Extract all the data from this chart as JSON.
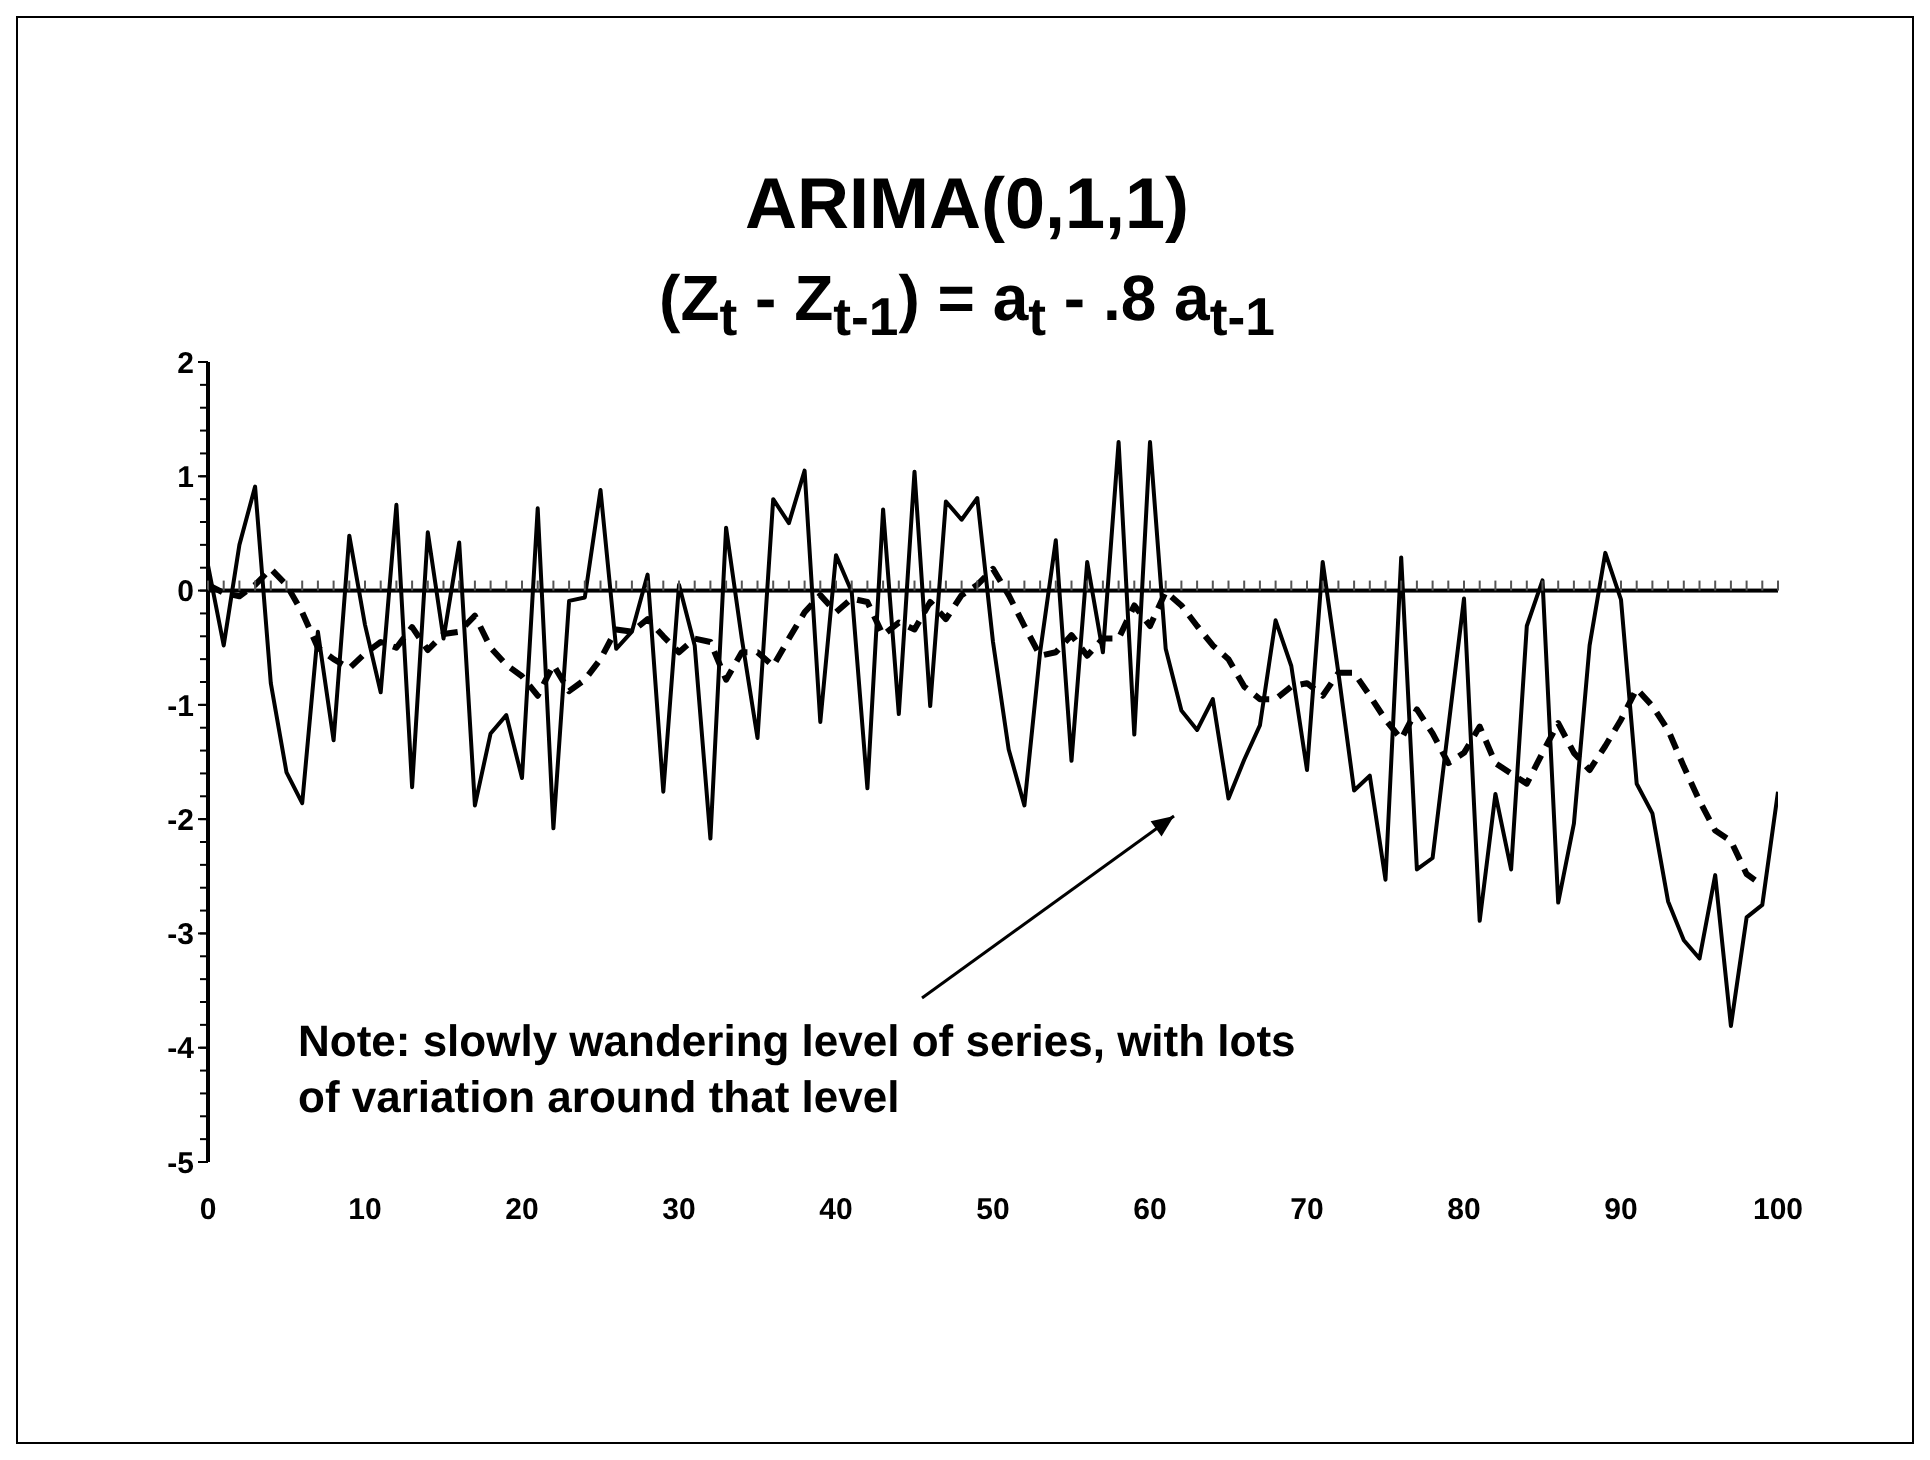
{
  "chart_data": {
    "type": "line",
    "title": "ARIMA(0,1,1)",
    "subtitle": "(Z$_{t}$ - Z$_{t-1}$) = a$_{t}$ - .8 a$_{t-1}$",
    "x": [
      0,
      1,
      2,
      3,
      4,
      5,
      6,
      7,
      8,
      9,
      10,
      11,
      12,
      13,
      14,
      15,
      16,
      17,
      18,
      19,
      20,
      21,
      22,
      23,
      24,
      25,
      26,
      27,
      28,
      29,
      30,
      31,
      32,
      33,
      34,
      35,
      36,
      37,
      38,
      39,
      40,
      41,
      42,
      43,
      44,
      45,
      46,
      47,
      48,
      49,
      50,
      51,
      52,
      53,
      54,
      55,
      56,
      57,
      58,
      59,
      60,
      61,
      62,
      63,
      64,
      65,
      66,
      67,
      68,
      69,
      70,
      71,
      72,
      73,
      74,
      75,
      76,
      77,
      78,
      79,
      80,
      81,
      82,
      83,
      84,
      85,
      86,
      87,
      88,
      89,
      90,
      91,
      92,
      93,
      94,
      95,
      96,
      97,
      98,
      99,
      100
    ],
    "series": [
      {
        "color": "#000000",
        "line_style": "solid",
        "values": [
          0.22,
          -0.48,
          0.4,
          0.91,
          -0.81,
          -1.59,
          -1.86,
          -0.36,
          -1.31,
          0.48,
          -0.3,
          -0.89,
          0.75,
          -1.72,
          0.51,
          -0.42,
          0.42,
          -1.88,
          -1.25,
          -1.09,
          -1.64,
          0.72,
          -2.08,
          -0.09,
          -0.06,
          0.88,
          -0.51,
          -0.36,
          0.14,
          -1.76,
          0.05,
          -0.48,
          -2.17,
          0.55,
          -0.42,
          -1.29,
          0.8,
          0.59,
          1.05,
          -1.15,
          0.31,
          -0.01,
          -1.73,
          0.71,
          -1.08,
          1.04,
          -1.01,
          0.78,
          0.62,
          0.81,
          -0.45,
          -1.39,
          -1.88,
          -0.54,
          0.44,
          -1.49,
          0.25,
          -0.54,
          1.3,
          -1.26,
          1.3,
          -0.51,
          -1.05,
          -1.22,
          -0.95,
          -1.82,
          -1.48,
          -1.18,
          -0.26,
          -0.66,
          -1.57,
          0.25,
          -0.72,
          -1.75,
          -1.62,
          -2.53,
          0.29,
          -2.44,
          -2.34,
          -1.2,
          -0.07,
          -2.89,
          -1.78,
          -2.44,
          -0.31,
          0.09,
          -2.73,
          -2.04,
          -0.48,
          0.33,
          -0.08,
          -1.69,
          -1.95,
          -2.72,
          -3.06,
          -3.22,
          -2.49,
          -3.81,
          -2.86,
          -2.75,
          -1.76
        ]
      },
      {
        "color": "#000000",
        "line_style": "dashed",
        "values": [
          0.05,
          -0.02,
          -0.05,
          0.05,
          0.19,
          0.05,
          -0.19,
          -0.5,
          -0.6,
          -0.68,
          -0.55,
          -0.45,
          -0.5,
          -0.32,
          -0.52,
          -0.38,
          -0.36,
          -0.22,
          -0.5,
          -0.65,
          -0.75,
          -0.92,
          -0.65,
          -0.88,
          -0.78,
          -0.6,
          -0.34,
          -0.36,
          -0.25,
          -0.4,
          -0.54,
          -0.42,
          -0.45,
          -0.78,
          -0.54,
          -0.54,
          -0.66,
          -0.42,
          -0.19,
          -0.04,
          -0.19,
          -0.07,
          -0.1,
          -0.39,
          -0.28,
          -0.34,
          -0.1,
          -0.25,
          -0.04,
          0.05,
          0.19,
          -0.04,
          -0.31,
          -0.57,
          -0.54,
          -0.39,
          -0.57,
          -0.42,
          -0.42,
          -0.13,
          -0.31,
          -0.01,
          -0.13,
          -0.31,
          -0.48,
          -0.6,
          -0.84,
          -0.95,
          -0.95,
          -0.84,
          -0.81,
          -0.92,
          -0.72,
          -0.72,
          -0.92,
          -1.13,
          -1.3,
          -1.04,
          -1.25,
          -1.51,
          -1.42,
          -1.19,
          -1.51,
          -1.6,
          -1.69,
          -1.42,
          -1.16,
          -1.42,
          -1.57,
          -1.36,
          -1.13,
          -0.86,
          -1.01,
          -1.22,
          -1.54,
          -1.84,
          -2.1,
          -2.19,
          -2.48,
          -2.58,
          null
        ]
      }
    ],
    "xlim": [
      0,
      100
    ],
    "xticks": [
      0,
      10,
      20,
      30,
      40,
      50,
      60,
      70,
      80,
      90,
      100
    ],
    "ylim": [
      -5,
      2
    ],
    "yticks": [
      -5,
      -4,
      -3,
      -2,
      -1,
      0,
      1,
      2
    ],
    "grid": false,
    "legend": false,
    "marker": "none",
    "annotations": [
      "Note: slowly wandering level of series, with lots of variation around that level"
    ]
  }
}
